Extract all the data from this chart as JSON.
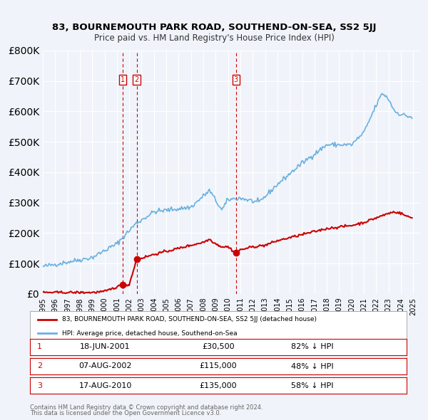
{
  "title": "83, BOURNEMOUTH PARK ROAD, SOUTHEND-ON-SEA, SS2 5JJ",
  "subtitle": "Price paid vs. HM Land Registry's House Price Index (HPI)",
  "hpi_color": "#6ab0e0",
  "price_color": "#cc0000",
  "transaction_color": "#cc0000",
  "vline_color": "#cc0000",
  "bg_color": "#f0f4fa",
  "plot_bg": "#f0f4fa",
  "grid_color": "#ffffff",
  "legend_label_red": "83, BOURNEMOUTH PARK ROAD, SOUTHEND-ON-SEA, SS2 5JJ (detached house)",
  "legend_label_blue": "HPI: Average price, detached house, Southend-on-Sea",
  "transactions": [
    {
      "label": "1",
      "date_num": 2001.46,
      "price": 30500,
      "date_str": "18-JUN-2001",
      "pct": "82%",
      "dir": "↓"
    },
    {
      "label": "2",
      "date_num": 2002.6,
      "price": 115000,
      "date_str": "07-AUG-2002",
      "pct": "48%",
      "dir": "↓"
    },
    {
      "label": "3",
      "date_num": 2010.63,
      "price": 135000,
      "date_str": "17-AUG-2010",
      "pct": "58%",
      "dir": "↓"
    }
  ],
  "footer1": "Contains HM Land Registry data © Crown copyright and database right 2024.",
  "footer2": "This data is licensed under the Open Government Licence v3.0.",
  "ylim": [
    0,
    800000
  ],
  "xlim_start": 1995.0,
  "xlim_end": 2025.5
}
